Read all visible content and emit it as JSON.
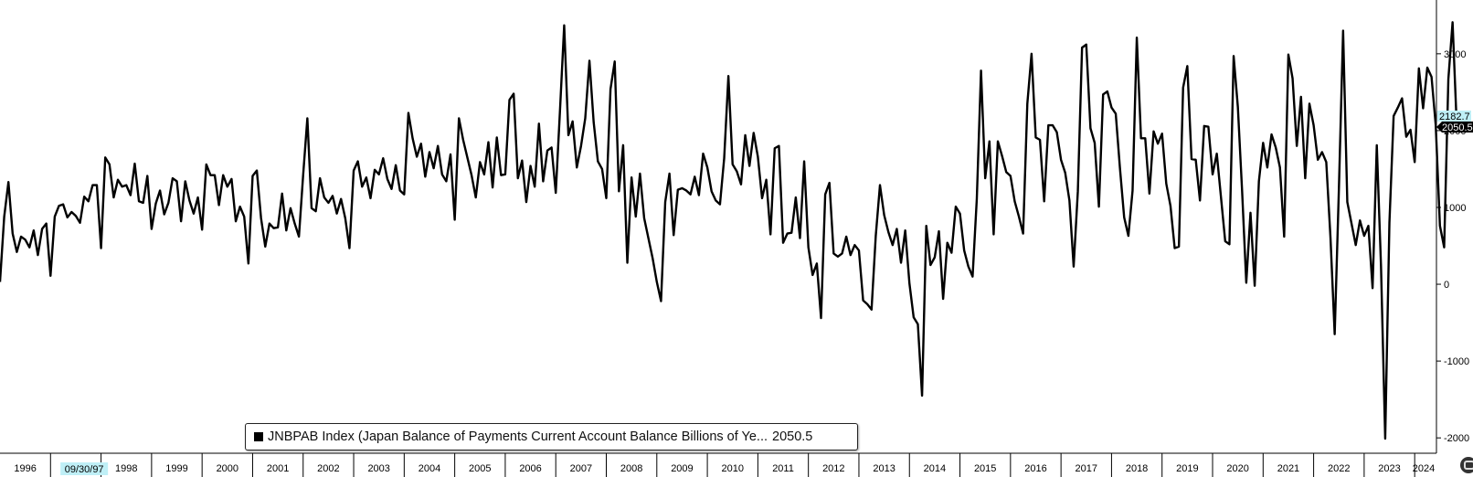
{
  "colors": {
    "line": "#000000",
    "last_value_tag_bg": "#000000",
    "last_value_tag_text": "#ffffff",
    "previous_value_tag_bg": "#bfeff6",
    "highlight_date_bg": "#bfeff6",
    "axis": "#000000"
  },
  "legend": {
    "text": "JNBPAB Index (Japan Balance of Payments Current Account Balance Billions of Ye...",
    "value": "2050.5"
  },
  "tags": {
    "last_value": "2050.5",
    "previous_value": "2182.7"
  },
  "highlight_date": "09/30/97",
  "chart_data": {
    "type": "line",
    "x_range": [
      "1996-01",
      "2024-04"
    ],
    "x_tick_labels": [
      "1996",
      "1997",
      "1998",
      "1999",
      "2000",
      "2001",
      "2002",
      "2003",
      "2004",
      "2005",
      "2006",
      "2007",
      "2008",
      "2009",
      "2010",
      "2011",
      "2012",
      "2013",
      "2014",
      "2015",
      "2016",
      "2017",
      "2018",
      "2019",
      "2020",
      "2021",
      "2022",
      "2023",
      "2024"
    ],
    "y_ticks": [
      -2000,
      -1000,
      0,
      1000,
      2000,
      3000
    ],
    "y_tick_labels": [
      "-2000",
      "-1000",
      "0",
      "1000",
      "2000",
      "3000"
    ],
    "ylim": [
      -2200,
      3700
    ],
    "grid": false,
    "y_axis_side": "right",
    "legend_position": "bottom-left",
    "series": [
      {
        "name": "JNBPAB Index (Japan Balance of Payments Current Account Balance Billions of Ye...",
        "start": "1996-01",
        "frequency": "monthly",
        "values": [
          30,
          880,
          1330,
          660,
          420,
          620,
          580,
          480,
          700,
          380,
          720,
          790,
          110,
          880,
          1020,
          1040,
          870,
          940,
          890,
          800,
          1140,
          1080,
          1290,
          1290,
          470,
          1650,
          1560,
          1130,
          1360,
          1270,
          1290,
          1160,
          1570,
          1080,
          1060,
          1410,
          720,
          1050,
          1220,
          910,
          1060,
          1380,
          1340,
          820,
          1340,
          1090,
          920,
          1130,
          710,
          1560,
          1420,
          1420,
          1030,
          1420,
          1270,
          1370,
          820,
          1010,
          880,
          270,
          1410,
          1480,
          860,
          490,
          790,
          730,
          740,
          1180,
          700,
          990,
          790,
          620,
          1420,
          2160,
          990,
          950,
          1380,
          1130,
          1060,
          1150,
          920,
          1110,
          860,
          470,
          1480,
          1600,
          1270,
          1390,
          1120,
          1490,
          1430,
          1640,
          1370,
          1240,
          1550,
          1220,
          1170,
          2230,
          1900,
          1660,
          1830,
          1400,
          1720,
          1510,
          1800,
          1430,
          1340,
          1690,
          840,
          2160,
          1880,
          1650,
          1420,
          1130,
          1590,
          1430,
          1850,
          1260,
          1910,
          1420,
          1430,
          2400,
          2480,
          1380,
          1610,
          1070,
          1540,
          1270,
          2090,
          1340,
          1740,
          1780,
          1190,
          2260,
          3370,
          1940,
          2120,
          1520,
          1800,
          2160,
          2910,
          2110,
          1600,
          1500,
          1120,
          2540,
          2900,
          1210,
          1810,
          280,
          1390,
          880,
          1440,
          860,
          600,
          340,
          30,
          -220,
          1070,
          1440,
          640,
          1230,
          1250,
          1220,
          1170,
          1400,
          1160,
          1700,
          1520,
          1210,
          1090,
          1040,
          1640,
          2710,
          1560,
          1470,
          1300,
          1940,
          1540,
          1970,
          1660,
          1120,
          1360,
          650,
          1770,
          1800,
          540,
          660,
          670,
          1130,
          600,
          1600,
          480,
          120,
          270,
          -440,
          1170,
          1320,
          400,
          360,
          400,
          620,
          380,
          510,
          440,
          -210,
          -260,
          -330,
          630,
          1290,
          900,
          680,
          510,
          720,
          280,
          700,
          10,
          -430,
          -520,
          -1450,
          760,
          250,
          350,
          690,
          -190,
          540,
          410,
          1010,
          920,
          440,
          230,
          100,
          1110,
          2780,
          1380,
          1860,
          650,
          1860,
          1670,
          1460,
          1410,
          1080,
          880,
          660,
          2350,
          3000,
          1910,
          1880,
          1080,
          2070,
          2070,
          1980,
          1620,
          1450,
          1090,
          230,
          1210,
          3080,
          3120,
          2030,
          1840,
          1010,
          2470,
          2510,
          2300,
          2220,
          1510,
          870,
          630,
          1220,
          3210,
          1900,
          1900,
          1180,
          1990,
          1830,
          1960,
          1310,
          1020,
          470,
          490,
          2560,
          2840,
          1630,
          1620,
          1090,
          2060,
          2050,
          1430,
          1700,
          1130,
          560,
          520,
          2970,
          2310,
          1230,
          20,
          930,
          -20,
          1340,
          1840,
          1520,
          1950,
          1780,
          1520,
          620,
          2990,
          2680,
          1800,
          2440,
          1380,
          2350,
          2070,
          1620,
          1720,
          1590,
          610,
          -650,
          1240,
          3300,
          1070,
          790,
          510,
          830,
          630,
          760,
          -50,
          1810,
          240,
          -2010,
          800,
          2190,
          2300,
          2420,
          1920,
          2010,
          1590,
          2810,
          2290,
          2820,
          2700,
          2070,
          760,
          480,
          2670,
          3410,
          2051
        ]
      }
    ]
  }
}
